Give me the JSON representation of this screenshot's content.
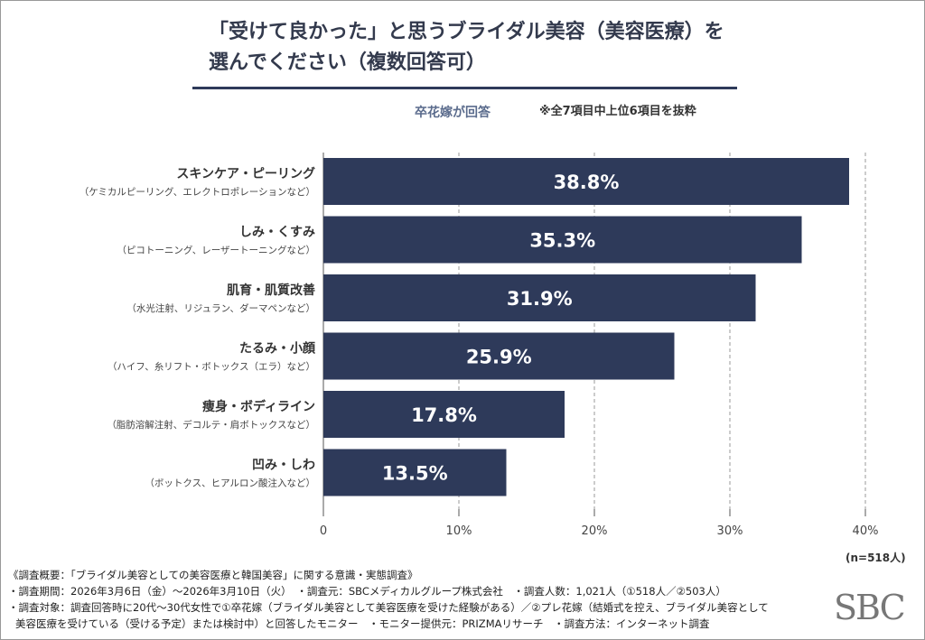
{
  "title_line1": "「受けて良かった」と思うブライダル美容（美容医療）を",
  "title_line2": "選んでください（複数回答可）",
  "respondent_label": "卒花嫁が回答",
  "note": "※全7項目中上位6項目を抜粋",
  "sample_size": "(n=518人)",
  "logo": "SBC",
  "colors": {
    "bar": "#2e3a5a",
    "title": "#333a4d"
  },
  "chart_data": {
    "type": "bar",
    "orientation": "horizontal",
    "categories": [
      "スキンケア・ピーリング",
      "しみ・くすみ",
      "肌育・肌質改善",
      "たるみ・小顔",
      "痩身・ボディライン",
      "凹み・しわ"
    ],
    "subcategories": [
      "（ケミカルピーリング、エレクトロポレーションなど）",
      "（ピコトーニング、レーザートーニングなど）",
      "（水光注射、リジュラン、ダーマペンなど）",
      "（ハイフ、糸リフト・ボトックス（エラ）など）",
      "（脂肪溶解注射、デコルテ・肩ボトックスなど）",
      "（ボットクス、ヒアルロン酸注入など）"
    ],
    "values": [
      38.8,
      35.3,
      31.9,
      25.9,
      17.8,
      13.5
    ],
    "data_labels": [
      "38.8%",
      "35.3%",
      "31.9%",
      "25.9%",
      "17.8%",
      "13.5%"
    ],
    "xlim": [
      0,
      40
    ],
    "ticks": [
      0,
      10,
      20,
      30,
      40
    ],
    "tick_labels": [
      "0",
      "10%",
      "20%",
      "30%",
      "40%"
    ],
    "grid": "vertical dashed"
  },
  "footer": [
    "《調査概要：「ブライダル美容としての美容医療と韓国美容」に関する意識・実態調査》",
    "・調査期間：2026年3月6日（金）～2026年3月10日（火）　・調査元：SBCメディカルグループ株式会社　・調査人数：1,021人（①518人／②503人）",
    "・調査対象：調査回答時に20代～30代女性で①卒花嫁（ブライダル美容として美容医療を受けた経験がある）／②プレ花嫁（結婚式を控え、ブライダル美容として",
    "美容医療を受けている（受ける予定）または検討中）と回答したモニター　・モニター提供元：PRIZMAリサーチ　・調査方法：インターネット調査"
  ]
}
